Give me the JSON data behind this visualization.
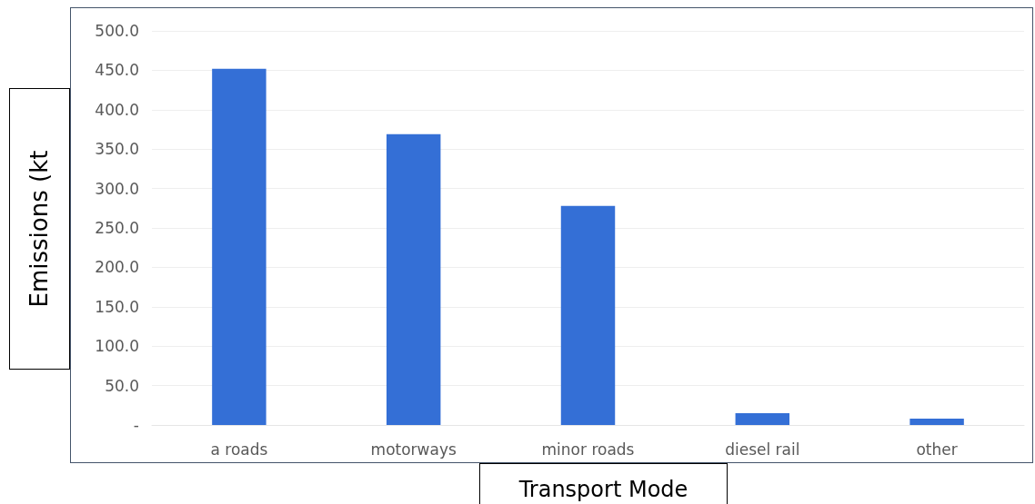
{
  "chart_data": {
    "type": "bar",
    "xlabel": "Transport Mode",
    "ylabel": "Emissions (kt",
    "categories": [
      "a roads",
      "motorways",
      "minor roads",
      "diesel rail",
      "other"
    ],
    "values": [
      452,
      369,
      278,
      15,
      8
    ],
    "color": "#346fd6",
    "ylim": [
      0,
      500
    ],
    "yticks": [
      {
        "value": 0,
        "label": "-"
      },
      {
        "value": 50,
        "label": "50.0"
      },
      {
        "value": 100,
        "label": "100.0"
      },
      {
        "value": 150,
        "label": "150.0"
      },
      {
        "value": 200,
        "label": "200.0"
      },
      {
        "value": 250,
        "label": "250.0"
      },
      {
        "value": 300,
        "label": "300.0"
      },
      {
        "value": 350,
        "label": "350.0"
      },
      {
        "value": 400,
        "label": "400.0"
      },
      {
        "value": 450,
        "label": "450.0"
      },
      {
        "value": 500,
        "label": "500.0"
      }
    ],
    "grid": true
  }
}
